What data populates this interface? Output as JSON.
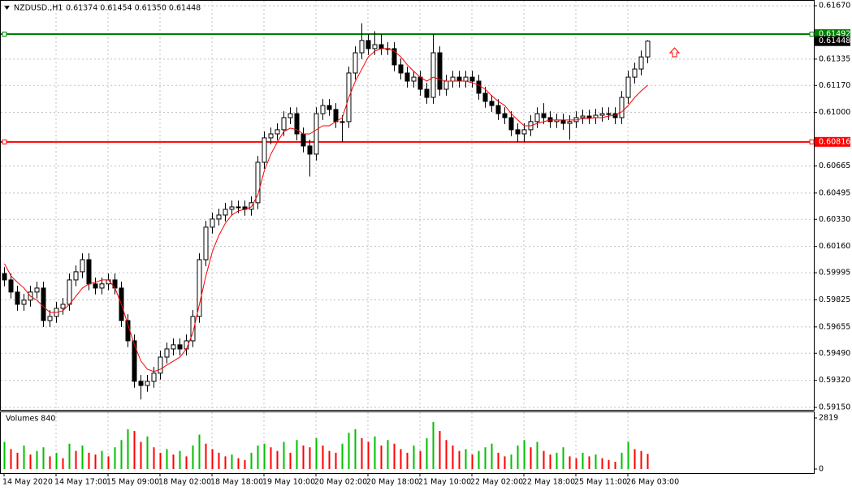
{
  "chart_data": [
    {
      "type": "candlestick",
      "title": "NZDUSD.,H1",
      "ohlc_label": "0.61374 0.61454 0.61350 0.61448",
      "categories": [
        "14 May 2020",
        null,
        null,
        null,
        null,
        null,
        null,
        null,
        "14 May 17:00",
        null,
        null,
        null,
        null,
        null,
        null,
        null,
        "15 May 09:00",
        null,
        null,
        null,
        null,
        null,
        null,
        null,
        "18 May 02:00",
        null,
        null,
        null,
        null,
        null,
        null,
        null,
        "18 May 18:00",
        null,
        null,
        null,
        null,
        null,
        null,
        null,
        "19 May 10:00",
        null,
        null,
        null,
        null,
        null,
        null,
        null,
        "20 May 02:00",
        null,
        null,
        null,
        null,
        null,
        null,
        null,
        "20 May 18:00",
        null,
        null,
        null,
        null,
        null,
        null,
        null,
        "21 May 10:00",
        null,
        null,
        null,
        null,
        null,
        null,
        null,
        "22 May 02:00",
        null,
        null,
        null,
        null,
        null,
        null,
        null,
        "22 May 18:00",
        null,
        null,
        null,
        null,
        null,
        null,
        null,
        "25 May 11:00",
        null,
        null,
        null,
        null,
        null,
        null,
        null,
        "26 May 03:00",
        null,
        null,
        null
      ],
      "open": [
        0.5999,
        0.5995,
        0.59874,
        0.59797,
        0.59823,
        0.59874,
        0.59899,
        0.59695,
        0.59721,
        0.59772,
        0.59797,
        0.5995,
        0.60001,
        0.60077,
        0.59925,
        0.59899,
        0.59925,
        0.5995,
        0.59899,
        0.59695,
        0.59568,
        0.59314,
        0.59288,
        0.59314,
        0.59365,
        0.59466,
        0.59517,
        0.59543,
        0.59517,
        0.59568,
        0.59721,
        0.60077,
        0.60281,
        0.60332,
        0.60357,
        0.60393,
        0.60408,
        0.60408,
        0.60393,
        0.60434,
        0.60688,
        0.60841,
        0.60866,
        0.60892,
        0.60968,
        0.60993,
        0.60866,
        0.6079,
        0.60739,
        0.60993,
        0.61044,
        0.61019,
        0.60943,
        0.60943,
        0.61248,
        0.61375,
        0.61452,
        0.61401,
        0.61426,
        0.61401,
        0.61401,
        0.61299,
        0.61248,
        0.61197,
        0.61222,
        0.61146,
        0.61095,
        0.61375,
        0.61146,
        0.61197,
        0.61222,
        0.61197,
        0.61222,
        0.61197,
        0.61121,
        0.6107,
        0.61044,
        0.60993,
        0.60968,
        0.60892,
        0.60866,
        0.60892,
        0.60943,
        0.60993,
        0.60968,
        0.60943,
        0.60953,
        0.60932,
        0.60943,
        0.60968,
        0.60978,
        0.60968,
        0.60983,
        0.60993,
        0.60993,
        0.60968,
        0.61095,
        0.61222,
        0.61273,
        0.61349
      ],
      "high": [
        0.6003,
        0.5999,
        0.59914,
        0.59863,
        0.59914,
        0.59939,
        0.59939,
        0.59761,
        0.59812,
        0.59837,
        0.5999,
        0.60041,
        0.60117,
        0.60117,
        0.59965,
        0.59965,
        0.5999,
        0.5999,
        0.59939,
        0.59735,
        0.59608,
        0.59354,
        0.59354,
        0.59405,
        0.59506,
        0.59557,
        0.59583,
        0.59583,
        0.59608,
        0.59761,
        0.60117,
        0.60321,
        0.60372,
        0.60397,
        0.60433,
        0.60448,
        0.60448,
        0.60448,
        0.60474,
        0.60728,
        0.60881,
        0.60906,
        0.60932,
        0.61008,
        0.61033,
        0.61033,
        0.60906,
        0.6083,
        0.61033,
        0.61084,
        0.61084,
        0.61059,
        0.60983,
        0.61288,
        0.61415,
        0.6156,
        0.61492,
        0.6151,
        0.61492,
        0.61441,
        0.61441,
        0.61339,
        0.61288,
        0.61262,
        0.61262,
        0.61186,
        0.61492,
        0.61415,
        0.61237,
        0.61262,
        0.61262,
        0.61262,
        0.61262,
        0.61237,
        0.61161,
        0.6111,
        0.61084,
        0.61033,
        0.61008,
        0.60932,
        0.60932,
        0.60983,
        0.61033,
        0.61059,
        0.61008,
        0.60993,
        0.60993,
        0.60983,
        0.61008,
        0.61018,
        0.61018,
        0.61023,
        0.61033,
        0.61033,
        0.61033,
        0.61135,
        0.61262,
        0.61313,
        0.61389,
        0.61454
      ],
      "low": [
        0.5991,
        0.59834,
        0.59757,
        0.59757,
        0.59783,
        0.59834,
        0.59655,
        0.59655,
        0.59681,
        0.59732,
        0.59757,
        0.5991,
        0.59961,
        0.59885,
        0.59859,
        0.59859,
        0.59885,
        0.59859,
        0.59655,
        0.59528,
        0.59274,
        0.592,
        0.59248,
        0.59274,
        0.59325,
        0.59426,
        0.59477,
        0.59477,
        0.59477,
        0.59528,
        0.59681,
        0.60037,
        0.60241,
        0.60292,
        0.60317,
        0.60353,
        0.60368,
        0.60353,
        0.60353,
        0.60394,
        0.60648,
        0.60801,
        0.60826,
        0.60852,
        0.60928,
        0.60826,
        0.6075,
        0.60599,
        0.60699,
        0.60953,
        0.60979,
        0.60903,
        0.60816,
        0.60903,
        0.61208,
        0.61335,
        0.61361,
        0.61361,
        0.61361,
        0.61361,
        0.61259,
        0.61208,
        0.61157,
        0.61157,
        0.61106,
        0.61055,
        0.61055,
        0.61106,
        0.61106,
        0.61157,
        0.61157,
        0.61157,
        0.61157,
        0.61081,
        0.6103,
        0.61004,
        0.60953,
        0.60928,
        0.60852,
        0.60816,
        0.60816,
        0.60852,
        0.60903,
        0.60928,
        0.60903,
        0.60903,
        0.60892,
        0.6083,
        0.60903,
        0.60928,
        0.60928,
        0.60928,
        0.60943,
        0.60953,
        0.60928,
        0.60928,
        0.61055,
        0.61182,
        0.61233,
        0.61309
      ],
      "close": [
        0.5995,
        0.59874,
        0.59797,
        0.59823,
        0.59874,
        0.59899,
        0.59695,
        0.59721,
        0.59772,
        0.59797,
        0.5995,
        0.60001,
        0.60077,
        0.59925,
        0.59899,
        0.59925,
        0.5995,
        0.59899,
        0.59695,
        0.59568,
        0.59314,
        0.59288,
        0.59314,
        0.59365,
        0.59466,
        0.59517,
        0.59543,
        0.59517,
        0.59568,
        0.59721,
        0.60077,
        0.60281,
        0.60332,
        0.60357,
        0.60393,
        0.60408,
        0.60408,
        0.60393,
        0.60434,
        0.60688,
        0.60841,
        0.60866,
        0.60892,
        0.60968,
        0.60993,
        0.60866,
        0.6079,
        0.60739,
        0.60993,
        0.61044,
        0.61019,
        0.60943,
        0.60943,
        0.61248,
        0.61375,
        0.61452,
        0.61401,
        0.61426,
        0.61401,
        0.61401,
        0.61299,
        0.61248,
        0.61197,
        0.61222,
        0.61146,
        0.61095,
        0.61375,
        0.61146,
        0.61197,
        0.61222,
        0.61197,
        0.61222,
        0.61197,
        0.61121,
        0.6107,
        0.61044,
        0.60993,
        0.60968,
        0.60892,
        0.60866,
        0.60892,
        0.60943,
        0.60993,
        0.60968,
        0.60943,
        0.60953,
        0.60932,
        0.60943,
        0.60968,
        0.60978,
        0.60968,
        0.60983,
        0.60993,
        0.60993,
        0.60968,
        0.61095,
        0.61222,
        0.61273,
        0.61349,
        0.61448
      ],
      "up_color": "#ffffff",
      "down_color": "#000000",
      "ma": {
        "color": "#ff0000",
        "values": [
          0.60052,
          0.59975,
          0.59935,
          0.59899,
          0.59848,
          0.59823,
          0.59782,
          0.59746,
          0.59746,
          0.59757,
          0.59797,
          0.59848,
          0.59899,
          0.59925,
          0.59935,
          0.5995,
          0.5995,
          0.59899,
          0.59797,
          0.5967,
          0.59543,
          0.59441,
          0.5939,
          0.59375,
          0.5939,
          0.59416,
          0.59441,
          0.59466,
          0.59517,
          0.59619,
          0.59797,
          0.59975,
          0.60128,
          0.6023,
          0.60306,
          0.60357,
          0.60383,
          0.60393,
          0.60408,
          0.60484,
          0.60637,
          0.60739,
          0.60815,
          0.60881,
          0.60902,
          0.60892,
          0.60866,
          0.60866,
          0.60892,
          0.60917,
          0.60917,
          0.60943,
          0.60968,
          0.61095,
          0.61197,
          0.61273,
          0.61349,
          0.61385,
          0.61401,
          0.61401,
          0.61385,
          0.61349,
          0.61299,
          0.61258,
          0.61222,
          0.61197,
          0.61222,
          0.61207,
          0.61197,
          0.61197,
          0.61197,
          0.61197,
          0.61187,
          0.61172,
          0.61146,
          0.61105,
          0.6107,
          0.61044,
          0.60993,
          0.60953,
          0.60917,
          0.60917,
          0.60932,
          0.60943,
          0.60953,
          0.60953,
          0.60953,
          0.60953,
          0.60953,
          0.60963,
          0.60963,
          0.60968,
          0.60968,
          0.60978,
          0.60983,
          0.61004,
          0.61044,
          0.61095,
          0.61136,
          0.61172
        ]
      },
      "hlines": [
        {
          "value": 0.61492,
          "color": "#008000"
        },
        {
          "value": 0.60816,
          "color": "#ff0000"
        }
      ],
      "last_price": 0.61448,
      "ylim": [
        0.59135,
        0.61706
      ],
      "yticks": [
        {
          "value": 0.6167,
          "label": "0.61670"
        },
        0.61335,
        {
          "value": 0.6117,
          "label": "0.61170"
        },
        {
          "value": 0.61,
          "label": "0.61000"
        },
        0.60665,
        0.60495,
        {
          "value": 0.6033,
          "label": "0.60330"
        },
        {
          "value": 0.6016,
          "label": "0.60160"
        },
        0.59995,
        0.59825,
        0.59655,
        {
          "value": 0.5949,
          "label": "0.59490"
        },
        {
          "value": 0.5932,
          "label": "0.59320"
        },
        {
          "value": 0.5915,
          "label": "0.59150"
        }
      ],
      "grid": true
    },
    {
      "type": "volume",
      "title": "Volumes 840",
      "values": [
        1500,
        1100,
        900,
        1300,
        800,
        1000,
        1200,
        700,
        900,
        600,
        1400,
        1000,
        1300,
        900,
        800,
        1000,
        700,
        1200,
        1600,
        2200,
        2100,
        1500,
        1800,
        1200,
        900,
        1100,
        800,
        1000,
        700,
        1300,
        1900,
        1400,
        1100,
        900,
        700,
        800,
        600,
        500,
        900,
        1300,
        1400,
        1200,
        1000,
        1500,
        900,
        1600,
        1300,
        1200,
        1700,
        1300,
        1000,
        900,
        1400,
        2000,
        2200,
        1700,
        1500,
        1800,
        1300,
        1600,
        1400,
        1100,
        900,
        1300,
        1000,
        1700,
        2600,
        2100,
        1600,
        1300,
        1000,
        1100,
        800,
        1000,
        1200,
        1400,
        900,
        700,
        800,
        1300,
        1600,
        1200,
        1500,
        1000,
        800,
        900,
        1200,
        700,
        600,
        900,
        700,
        800,
        600,
        500,
        400,
        900,
        1500,
        1100,
        1000,
        840
      ],
      "up_color": "#00c000",
      "down_color": "#ff0000",
      "ylim": [
        -224,
        3132
      ],
      "yticks": [
        2819,
        0
      ]
    }
  ]
}
